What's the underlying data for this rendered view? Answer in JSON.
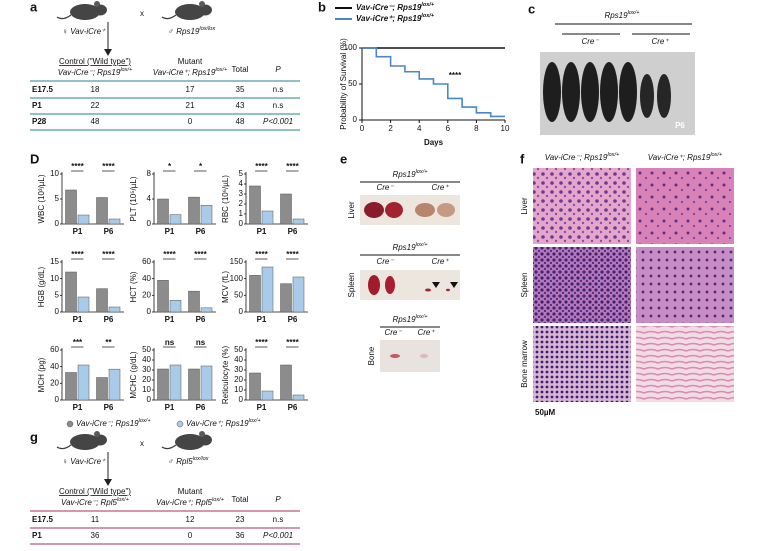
{
  "panel_a": {
    "label": "a",
    "female": "♀ Vav-iCre⁺",
    "cross": "x",
    "male": {
      "text": "♂ Rps19",
      "sup": "lox/lox"
    },
    "table": {
      "header": [
        "Control (\"Wild type\")",
        "Mutant",
        "Total",
        "P"
      ],
      "subheader": [
        {
          "text": "Vav-iCre⁻; Rps19",
          "sup": "lox/+"
        },
        {
          "text": "Vav-iCre⁺; Rps19",
          "sup": "lox/+"
        }
      ],
      "rows": [
        [
          "E17.5",
          18,
          17,
          35,
          "n.s"
        ],
        [
          "P1",
          22,
          21,
          43,
          "n.s"
        ],
        [
          "P28",
          48,
          0,
          48,
          "P<0.001"
        ]
      ]
    }
  },
  "panel_b": {
    "label": "b",
    "type": "line",
    "ylabel": "Probability of Survival (%)",
    "xlabel": "Days",
    "xlim": [
      0,
      10
    ],
    "ylim": [
      0,
      100
    ],
    "xticks": [
      0,
      2,
      4,
      6,
      8,
      10
    ],
    "yticks": [
      0,
      50,
      100
    ],
    "annotation": "****",
    "series": [
      {
        "name": {
          "text": "Vav-iCre⁻; Rps19",
          "sup": "lox/+"
        },
        "color": "#111111",
        "x": [
          0,
          10
        ],
        "values": [
          100,
          100
        ]
      },
      {
        "name": {
          "text": "Vav-iCre⁺; Rps19",
          "sup": "lox/+"
        },
        "color": "#4a86c8",
        "x": [
          0,
          1,
          1,
          2,
          2,
          3,
          3,
          4,
          4,
          5,
          5,
          6,
          6,
          7,
          7,
          8,
          8,
          9,
          9,
          10
        ],
        "values": [
          100,
          100,
          88,
          88,
          75,
          75,
          67,
          67,
          57,
          57,
          50,
          50,
          30,
          30,
          18,
          18,
          10,
          10,
          5,
          5
        ]
      }
    ]
  },
  "panel_c": {
    "label": "c",
    "title": {
      "text": "Rps19",
      "sup": "lox/+"
    },
    "groups": [
      "Cre⁻",
      "Cre⁺"
    ],
    "age": "P6"
  },
  "panel_d": {
    "label": "D",
    "legend": [
      {
        "text": "Vav-iCre⁻; Rps19",
        "sup": "lox/+",
        "color": "#8c8c8c"
      },
      {
        "text": "Vav-iCre⁺; Rps19",
        "sup": "lox/+",
        "color": "#a9cbea"
      }
    ],
    "charts": [
      {
        "ylabel": "WBC (10³/µL)",
        "ylim": [
          0,
          10
        ],
        "yticks": [
          0,
          5,
          10
        ],
        "categories": [
          "P1",
          "P6"
        ],
        "values": [
          [
            6.8,
            5.3
          ],
          [
            1.8,
            1.0
          ]
        ],
        "significance": [
          "****",
          "****"
        ]
      },
      {
        "ylabel": "PLT (10⁵/µL)",
        "ylim": [
          0,
          8
        ],
        "yticks": [
          0,
          4,
          8
        ],
        "categories": [
          "P1",
          "P6"
        ],
        "values": [
          [
            4.0,
            4.3
          ],
          [
            1.5,
            3.0
          ]
        ],
        "significance": [
          "*",
          "*"
        ]
      },
      {
        "ylabel": "RBC (10⁶/µL)",
        "ylim": [
          0,
          5
        ],
        "yticks": [
          0,
          1,
          2,
          3,
          4,
          5
        ],
        "categories": [
          "P1",
          "P6"
        ],
        "values": [
          [
            3.8,
            3.0
          ],
          [
            1.3,
            0.5
          ]
        ],
        "significance": [
          "****",
          "****"
        ]
      },
      {
        "ylabel": "HGB (g/dL)",
        "ylim": [
          0,
          15
        ],
        "yticks": [
          0,
          5,
          10,
          15
        ],
        "categories": [
          "P1",
          "P6"
        ],
        "values": [
          [
            12,
            7
          ],
          [
            4.5,
            1.5
          ]
        ],
        "significance": [
          "****",
          "****"
        ]
      },
      {
        "ylabel": "HCT (%)",
        "ylim": [
          0,
          60
        ],
        "yticks": [
          0,
          20,
          40,
          60
        ],
        "categories": [
          "P1",
          "P6"
        ],
        "values": [
          [
            38,
            25
          ],
          [
            14,
            5
          ]
        ],
        "significance": [
          "****",
          "****"
        ]
      },
      {
        "ylabel": "MCV (fL)",
        "ylim": [
          0,
          150
        ],
        "yticks": [
          0,
          50,
          100,
          150
        ],
        "categories": [
          "P1",
          "P6"
        ],
        "values": [
          [
            110,
            85
          ],
          [
            135,
            105
          ]
        ],
        "significance": [
          "****",
          "****"
        ]
      },
      {
        "ylabel": "MCH (pg)",
        "ylim": [
          0,
          60
        ],
        "yticks": [
          0,
          20,
          40,
          60
        ],
        "categories": [
          "P1",
          "P6"
        ],
        "values": [
          [
            33,
            27
          ],
          [
            42,
            37
          ]
        ],
        "significance": [
          "***",
          "**"
        ]
      },
      {
        "ylabel": "MCHC (g/dL)",
        "ylim": [
          0,
          50
        ],
        "yticks": [
          0,
          10,
          20,
          30,
          40,
          50
        ],
        "categories": [
          "P1",
          "P6"
        ],
        "values": [
          [
            31,
            31
          ],
          [
            35,
            34
          ]
        ],
        "significance": [
          "ns",
          "ns"
        ]
      },
      {
        "ylabel": "Reticulocyte (%)",
        "ylim": [
          0,
          50
        ],
        "yticks": [
          0,
          10,
          20,
          30,
          40,
          50
        ],
        "categories": [
          "P1",
          "P6"
        ],
        "values": [
          [
            27,
            35
          ],
          [
            9,
            5
          ]
        ],
        "significance": [
          "****",
          "****"
        ]
      }
    ]
  },
  "panel_e": {
    "label": "e",
    "blocks": [
      {
        "tissue": "Liver",
        "title": {
          "text": "Rps19",
          "sup": "lox/+"
        },
        "groups": [
          "Cre⁻",
          "Cre⁺"
        ]
      },
      {
        "tissue": "Spleen",
        "title": {
          "text": "Rps19",
          "sup": "lox/+"
        },
        "groups": [
          "Cre⁻",
          "Cre⁺"
        ]
      },
      {
        "tissue": "Bone",
        "title": {
          "text": "Rps19",
          "sup": "lox/+"
        },
        "groups": [
          "Cre⁻",
          "Cre⁺"
        ]
      }
    ]
  },
  "panel_f": {
    "label": "f",
    "columns": [
      {
        "text": "Vav-iCre⁻; Rps19",
        "sup": "lox/+"
      },
      {
        "text": "Vav-iCre⁺; Rps19",
        "sup": "lox/+"
      }
    ],
    "rows": [
      "Liver",
      "Spleen",
      "Bone marrow"
    ],
    "scale": "50µM"
  },
  "panel_g": {
    "label": "g",
    "female": "♀ Vav-iCre⁺",
    "cross": "x",
    "male": {
      "text": "♂ Rpl5",
      "sup": "lox/lox"
    },
    "table": {
      "header": [
        "Control (\"Wild type\")",
        "Mutant",
        "Total",
        "P"
      ],
      "subheader": [
        {
          "text": "Vav-iCre⁻; Rpl5",
          "sup": "lox/+"
        },
        {
          "text": "Vav-iCre⁺; Rpl5",
          "sup": "lox/+"
        }
      ],
      "rows": [
        [
          "E17.5",
          11,
          12,
          23,
          "n.s"
        ],
        [
          "P1",
          36,
          0,
          36,
          "P<0.001"
        ]
      ]
    }
  }
}
